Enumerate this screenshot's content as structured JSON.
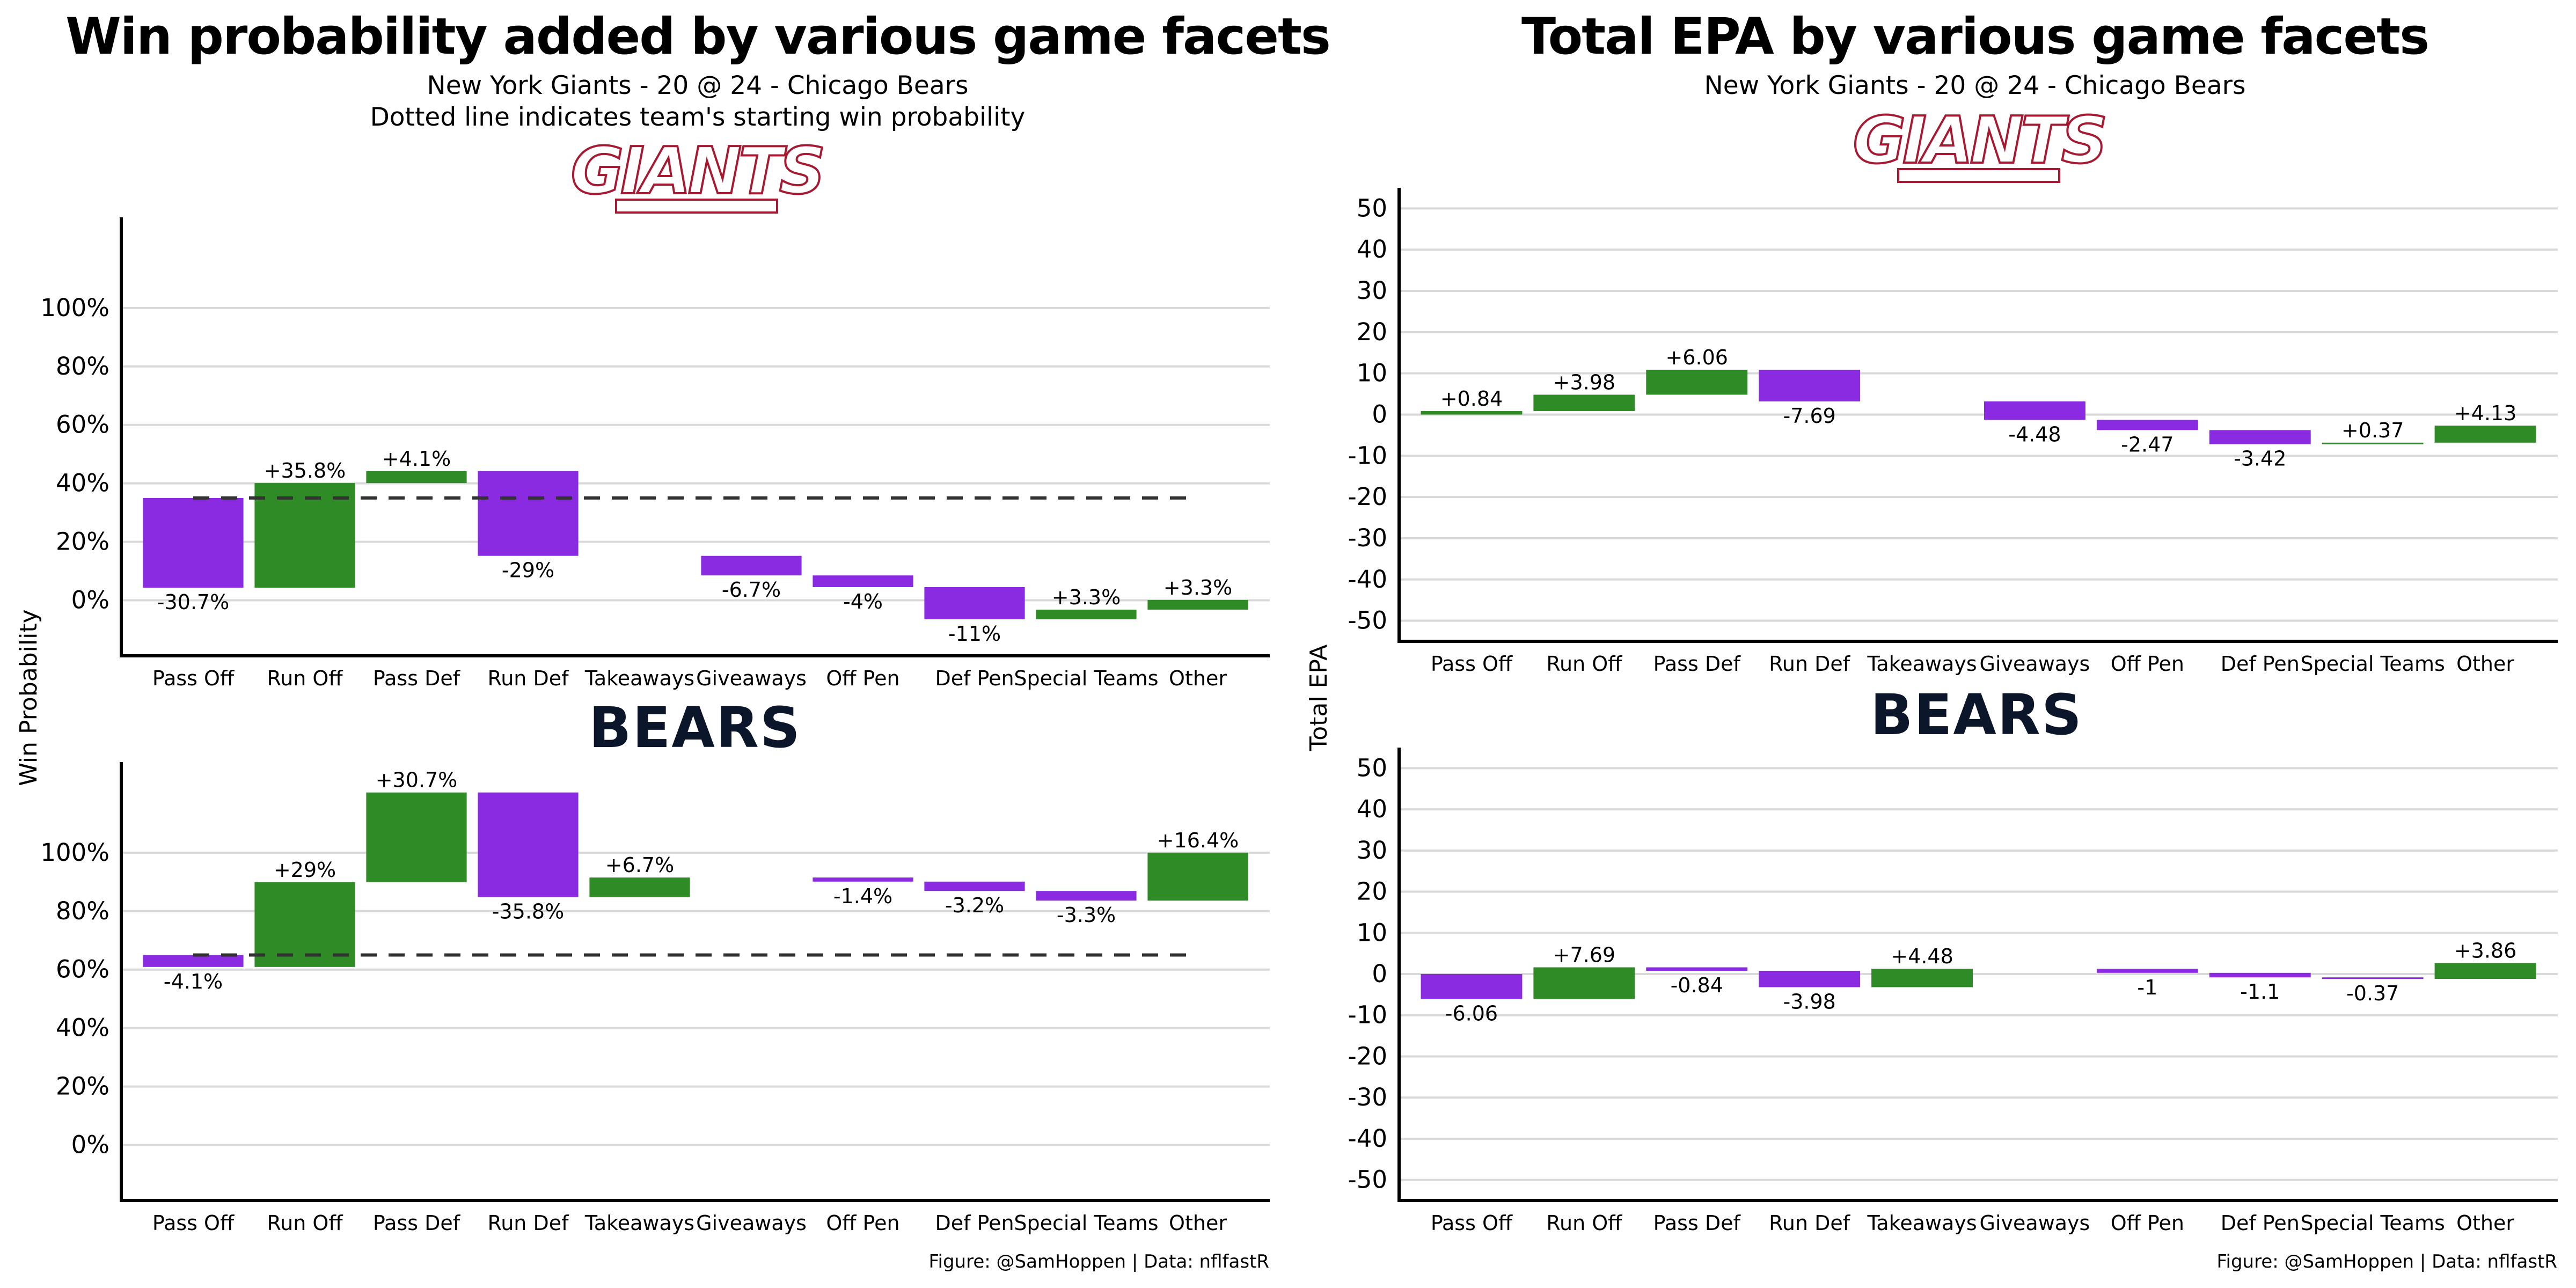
{
  "colors": {
    "positive": "#2e8b25",
    "negative": "#8a2be2",
    "grid": "#d9d9d9",
    "axis": "#000000",
    "ref_line": "#333333",
    "giants_logo": "#a71930",
    "bears_logo": "#0b162a"
  },
  "left": {
    "title": "Win probability added by various game facets",
    "subtitle_1": "New York Giants - 20 @ 24 - Chicago Bears",
    "subtitle_2": "Dotted line indicates team's starting win probability",
    "ylabel": "Win Probability",
    "caption": "Figure: @SamHoppen | Data: nflfastR"
  },
  "right": {
    "title": "Total EPA by various game facets",
    "subtitle_1": "New York Giants - 20 @ 24 - Chicago Bears",
    "ylabel": "Total EPA",
    "caption": "Figure: @SamHoppen | Data: nflfastR"
  },
  "logos": {
    "giants": "GIANTS",
    "bears": "BEARS"
  },
  "chart_data": [
    {
      "type": "bar",
      "subtype": "waterfall",
      "panel": "win-probability-giants",
      "categories": [
        "Pass Off",
        "Run Off",
        "Pass Def",
        "Run Def",
        "Takeaways",
        "Giveaways",
        "Off Pen",
        "Def Pen",
        "Special Teams",
        "Other"
      ],
      "bars": [
        {
          "start": 35.0,
          "end": 4.3,
          "label": "-30.7%"
        },
        {
          "start": 4.3,
          "end": 40.1,
          "label": "+35.8%"
        },
        {
          "start": 40.1,
          "end": 44.2,
          "label": "+4.1%"
        },
        {
          "start": 44.2,
          "end": 15.2,
          "label": "-29%"
        },
        null,
        {
          "start": 15.2,
          "end": 8.5,
          "label": "-6.7%"
        },
        {
          "start": 8.5,
          "end": 4.5,
          "label": "-4%"
        },
        {
          "start": 4.5,
          "end": -6.5,
          "label": "-11%"
        },
        {
          "start": -6.5,
          "end": -3.2,
          "label": "+3.3%"
        },
        {
          "start": -3.2,
          "end": 0.1,
          "label": "+3.3%"
        }
      ],
      "reference_line": 35,
      "yticks": [
        "100%",
        "80%",
        "60%",
        "40%",
        "20%",
        "0%"
      ],
      "ytick_values": [
        100,
        80,
        60,
        40,
        20,
        0
      ],
      "ylim": [
        -19,
        131
      ],
      "grid": true
    },
    {
      "type": "bar",
      "subtype": "waterfall",
      "panel": "win-probability-bears",
      "categories": [
        "Pass Off",
        "Run Off",
        "Pass Def",
        "Run Def",
        "Takeaways",
        "Giveaways",
        "Off Pen",
        "Def Pen",
        "Special Teams",
        "Other"
      ],
      "bars": [
        {
          "start": 65.0,
          "end": 60.9,
          "label": "-4.1%"
        },
        {
          "start": 60.9,
          "end": 89.9,
          "label": "+29%"
        },
        {
          "start": 89.9,
          "end": 120.6,
          "label": "+30.7%"
        },
        {
          "start": 120.6,
          "end": 84.8,
          "label": "-35.8%"
        },
        {
          "start": 84.8,
          "end": 91.5,
          "label": "+6.7%"
        },
        null,
        {
          "start": 91.5,
          "end": 90.1,
          "label": "-1.4%"
        },
        {
          "start": 90.1,
          "end": 86.9,
          "label": "-3.2%"
        },
        {
          "start": 86.9,
          "end": 83.6,
          "label": "-3.3%"
        },
        {
          "start": 83.6,
          "end": 100.0,
          "label": "+16.4%"
        }
      ],
      "reference_line": 65,
      "yticks": [
        "100%",
        "80%",
        "60%",
        "40%",
        "20%",
        "0%"
      ],
      "ytick_values": [
        100,
        80,
        60,
        40,
        20,
        0
      ],
      "ylim": [
        -19,
        131
      ],
      "grid": true
    },
    {
      "type": "bar",
      "subtype": "waterfall",
      "panel": "epa-giants",
      "categories": [
        "Pass Off",
        "Run Off",
        "Pass Def",
        "Run Def",
        "Takeaways",
        "Giveaways",
        "Off Pen",
        "Def Pen",
        "Special Teams",
        "Other"
      ],
      "bars": [
        {
          "start": 0,
          "end": 0.84,
          "label": "+0.84"
        },
        {
          "start": 0.84,
          "end": 4.82,
          "label": "+3.98"
        },
        {
          "start": 4.82,
          "end": 10.88,
          "label": "+6.06"
        },
        {
          "start": 10.88,
          "end": 3.19,
          "label": "-7.69"
        },
        null,
        {
          "start": 3.19,
          "end": -1.29,
          "label": "-4.48"
        },
        {
          "start": -1.29,
          "end": -3.76,
          "label": "-2.47"
        },
        {
          "start": -3.76,
          "end": -7.18,
          "label": "-3.42"
        },
        {
          "start": -7.18,
          "end": -6.81,
          "label": "+0.37"
        },
        {
          "start": -6.81,
          "end": -2.68,
          "label": "+4.13"
        }
      ],
      "yticks": [
        "50",
        "40",
        "30",
        "20",
        "10",
        "0",
        "-10",
        "-20",
        "-30",
        "-40",
        "-50"
      ],
      "ytick_values": [
        50,
        40,
        30,
        20,
        10,
        0,
        -10,
        -20,
        -30,
        -40,
        -50
      ],
      "ylim": [
        -55,
        55
      ],
      "grid": true
    },
    {
      "type": "bar",
      "subtype": "waterfall",
      "panel": "epa-bears",
      "categories": [
        "Pass Off",
        "Run Off",
        "Pass Def",
        "Run Def",
        "Takeaways",
        "Giveaways",
        "Off Pen",
        "Def Pen",
        "Special Teams",
        "Other"
      ],
      "bars": [
        {
          "start": 0,
          "end": -6.06,
          "label": "-6.06"
        },
        {
          "start": -6.06,
          "end": 1.63,
          "label": "+7.69"
        },
        {
          "start": 1.63,
          "end": 0.79,
          "label": "-0.84"
        },
        {
          "start": 0.79,
          "end": -3.19,
          "label": "-3.98"
        },
        {
          "start": -3.19,
          "end": 1.29,
          "label": "+4.48"
        },
        null,
        {
          "start": 1.29,
          "end": 0.29,
          "label": "-1"
        },
        {
          "start": 0.29,
          "end": -0.81,
          "label": "-1.1"
        },
        {
          "start": -0.81,
          "end": -1.18,
          "label": "-0.37"
        },
        {
          "start": -1.18,
          "end": 2.68,
          "label": "+3.86"
        }
      ],
      "yticks": [
        "50",
        "40",
        "30",
        "20",
        "10",
        "0",
        "-10",
        "-20",
        "-30",
        "-40",
        "-50"
      ],
      "ytick_values": [
        50,
        40,
        30,
        20,
        10,
        0,
        -10,
        -20,
        -30,
        -40,
        -50
      ],
      "ylim": [
        -55,
        55
      ],
      "grid": true
    }
  ]
}
